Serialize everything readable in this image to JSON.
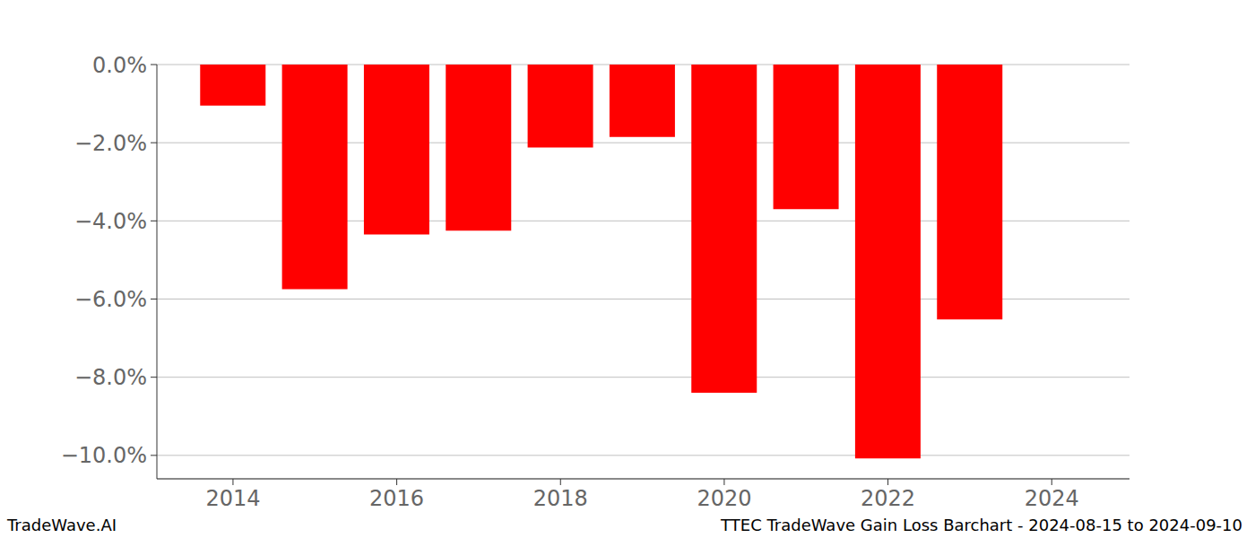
{
  "chart_data": {
    "type": "bar",
    "title": "TTEC TradeWave Gain Loss Barchart - 2024-08-15 to 2024-09-10",
    "annotations": [
      "TradeWave.AI"
    ],
    "x": [
      2014,
      2015,
      2016,
      2017,
      2018,
      2019,
      2020,
      2021,
      2022,
      2023
    ],
    "values": [
      -1.05,
      -5.75,
      -4.35,
      -4.25,
      -2.12,
      -1.85,
      -8.4,
      -3.7,
      -10.08,
      -6.52
    ],
    "color": "#ff0000",
    "xlim": [
      2013.07,
      2024.95
    ],
    "xticks": [
      2014,
      2016,
      2018,
      2020,
      2022,
      2024
    ],
    "ylim": [
      -10.6,
      0
    ],
    "yticks": [
      {
        "value": 0,
        "label": "0.0%"
      },
      {
        "value": -2,
        "label": "−2.0%"
      },
      {
        "value": -4,
        "label": "−4.0%"
      },
      {
        "value": -6,
        "label": "−6.0%"
      },
      {
        "value": -8,
        "label": "−8.0%"
      },
      {
        "value": -10,
        "label": "−10.0%"
      }
    ],
    "grid": true
  }
}
